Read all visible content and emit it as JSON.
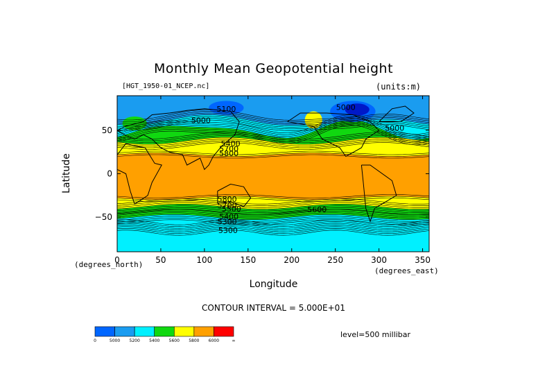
{
  "colors": {
    "c5000": "#0066ff",
    "c5000_5200": "#1a9cf0",
    "c5200_5400": "#00f0ff",
    "c5400_5600": "#10d810",
    "c5600_5800": "#ffff00",
    "c5800_6000": "#ffa000",
    "c6000": "#ff0000",
    "deep": "#0018c8"
  },
  "chart_data": {
    "type": "heatmap",
    "title": "Monthly Mean Geopotential height",
    "file_label": "[HGT_1950-01_NCEP.nc]",
    "units_label": "(units:m)",
    "xlabel": "Longitude",
    "ylabel": "Latitude",
    "x_unit": "(degrees_east)",
    "y_unit": "(degrees_north)",
    "xlim": [
      0,
      357.5
    ],
    "ylim": [
      -90,
      90
    ],
    "x_ticks": [
      0,
      50,
      100,
      150,
      200,
      250,
      300,
      350
    ],
    "y_ticks": [
      50,
      0,
      -50
    ],
    "level": "level=500 millibar",
    "contour_interval": "CONTOUR INTERVAL = 5.000E+01",
    "contour_labels": [
      {
        "text": "5100",
        "x": 125,
        "y": 74
      },
      {
        "text": "5000",
        "x": 96,
        "y": 61
      },
      {
        "text": "5000",
        "x": 262,
        "y": 76
      },
      {
        "text": "5000",
        "x": 318,
        "y": 52
      },
      {
        "text": "5400",
        "x": 130,
        "y": 34
      },
      {
        "text": "5700",
        "x": 128,
        "y": 28
      },
      {
        "text": "5800",
        "x": 128,
        "y": 23
      },
      {
        "text": "5800",
        "x": 126,
        "y": -30
      },
      {
        "text": "5700",
        "x": 126,
        "y": -37
      },
      {
        "text": "5500",
        "x": 131,
        "y": -41
      },
      {
        "text": "5400",
        "x": 128,
        "y": -50
      },
      {
        "text": "5600",
        "x": 229,
        "y": -42
      },
      {
        "text": "5300",
        "x": 126,
        "y": -56
      },
      {
        "text": "5300",
        "x": 127,
        "y": -66
      }
    ],
    "colorbar": {
      "labels": [
        "0",
        "5000",
        "5200",
        "5400",
        "5600",
        "5800",
        "6000",
        "∞"
      ]
    }
  }
}
